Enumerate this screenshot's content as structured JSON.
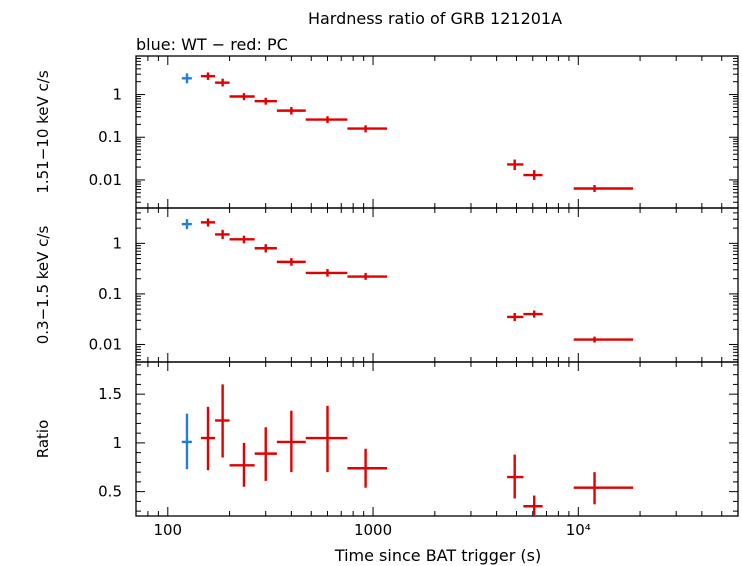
{
  "chart_data": {
    "type": "scatter",
    "title": "Hardness ratio of GRB 121201A",
    "subtitle": "blue: WT − red: PC",
    "xlabel": "Time since BAT trigger (s)",
    "xscale": "log",
    "xlim": [
      70,
      60000
    ],
    "xticks": [
      {
        "value": 100,
        "label": "100"
      },
      {
        "value": 1000,
        "label": "1000"
      },
      {
        "value": 10000,
        "label": "10⁴"
      }
    ],
    "colors": {
      "WT": "#1e7fe0",
      "PC": "#e00000"
    },
    "panels": [
      {
        "id": "hard",
        "ylabel": "1.51−10 keV c/s",
        "yscale": "log",
        "ylim": [
          0.0022,
          8
        ],
        "yticks": [
          {
            "value": 1,
            "label": "1"
          },
          {
            "value": 0.1,
            "label": "0.1"
          },
          {
            "value": 0.01,
            "label": "0.01"
          }
        ],
        "series": [
          {
            "name": "WT",
            "points": [
              {
                "x": 124,
                "xerr": [
                  117,
                  131
                ],
                "y": 2.4
              }
            ]
          },
          {
            "name": "PC",
            "points": [
              {
                "x": 157,
                "xerr": [
                  145,
                  170
                ],
                "y": 2.7,
                "yerr": [
                  2.2,
                  3.3
                ]
              },
              {
                "x": 185,
                "xerr": [
                  170,
                  200
                ],
                "y": 1.9,
                "yerr": [
                  1.55,
                  2.35
                ]
              },
              {
                "x": 235,
                "xerr": [
                  200,
                  265
                ],
                "y": 0.9,
                "yerr": [
                  0.74,
                  1.08
                ]
              },
              {
                "x": 300,
                "xerr": [
                  265,
                  340
                ],
                "y": 0.7,
                "yerr": [
                  0.58,
                  0.84
                ]
              },
              {
                "x": 400,
                "xerr": [
                  340,
                  470
                ],
                "y": 0.42,
                "yerr": [
                  0.34,
                  0.51
                ]
              },
              {
                "x": 600,
                "xerr": [
                  470,
                  750
                ],
                "y": 0.26,
                "yerr": [
                  0.215,
                  0.31
                ]
              },
              {
                "x": 920,
                "xerr": [
                  750,
                  1170
                ],
                "y": 0.16,
                "yerr": [
                  0.13,
                  0.19
                ]
              },
              {
                "x": 4900,
                "xerr": [
                  4500,
                  5400
                ],
                "y": 0.023,
                "yerr": [
                  0.017,
                  0.03
                ]
              },
              {
                "x": 6100,
                "xerr": [
                  5400,
                  6700
                ],
                "y": 0.013,
                "yerr": [
                  0.01,
                  0.017
                ]
              },
              {
                "x": 12000,
                "xerr": [
                  9500,
                  18500
                ],
                "y": 0.0063,
                "yerr": [
                  0.0052,
                  0.0076
                ]
              }
            ]
          }
        ]
      },
      {
        "id": "soft",
        "ylabel": "0.3−1.5 keV c/s",
        "yscale": "log",
        "ylim": [
          0.0045,
          5
        ],
        "yticks": [
          {
            "value": 1,
            "label": "1"
          },
          {
            "value": 0.1,
            "label": "0.1"
          },
          {
            "value": 0.01,
            "label": "0.01"
          }
        ],
        "series": [
          {
            "name": "WT",
            "points": [
              {
                "x": 124,
                "xerr": [
                  117,
                  131
                ],
                "y": 2.4
              }
            ]
          },
          {
            "name": "PC",
            "points": [
              {
                "x": 157,
                "xerr": [
                  145,
                  170
                ],
                "y": 2.6,
                "yerr": [
                  2.15,
                  3.1
                ]
              },
              {
                "x": 185,
                "xerr": [
                  170,
                  200
                ],
                "y": 1.5,
                "yerr": [
                  1.22,
                  1.85
                ]
              },
              {
                "x": 235,
                "xerr": [
                  200,
                  265
                ],
                "y": 1.2,
                "yerr": [
                  1.0,
                  1.42
                ]
              },
              {
                "x": 300,
                "xerr": [
                  265,
                  340
                ],
                "y": 0.8,
                "yerr": [
                  0.66,
                  0.96
                ]
              },
              {
                "x": 400,
                "xerr": [
                  340,
                  470
                ],
                "y": 0.43,
                "yerr": [
                  0.36,
                  0.51
                ]
              },
              {
                "x": 600,
                "xerr": [
                  470,
                  750
                ],
                "y": 0.26,
                "yerr": [
                  0.22,
                  0.31
                ]
              },
              {
                "x": 920,
                "xerr": [
                  750,
                  1170
                ],
                "y": 0.22,
                "yerr": [
                  0.19,
                  0.26
                ]
              },
              {
                "x": 4900,
                "xerr": [
                  4500,
                  5400
                ],
                "y": 0.035,
                "yerr": [
                  0.029,
                  0.042
                ]
              },
              {
                "x": 6100,
                "xerr": [
                  5400,
                  6700
                ],
                "y": 0.04,
                "yerr": [
                  0.034,
                  0.047
                ]
              },
              {
                "x": 12000,
                "xerr": [
                  9500,
                  18500
                ],
                "y": 0.0125,
                "yerr": [
                  0.0109,
                  0.0143
                ]
              }
            ]
          }
        ]
      },
      {
        "id": "ratio",
        "ylabel": "Ratio",
        "yscale": "linear",
        "ylim": [
          0.25,
          1.83
        ],
        "yticks": [
          {
            "value": 0.5,
            "label": "0.5"
          },
          {
            "value": 1,
            "label": "1"
          },
          {
            "value": 1.5,
            "label": "1.5"
          }
        ],
        "series": [
          {
            "name": "WT",
            "points": [
              {
                "x": 124,
                "xerr": [
                  117,
                  131
                ],
                "y": 1.01,
                "yerr": [
                  0.73,
                  1.3
                ]
              }
            ]
          },
          {
            "name": "PC",
            "points": [
              {
                "x": 157,
                "xerr": [
                  145,
                  170
                ],
                "y": 1.05,
                "yerr": [
                  0.72,
                  1.37
                ]
              },
              {
                "x": 185,
                "xerr": [
                  170,
                  200
                ],
                "y": 1.23,
                "yerr": [
                  0.85,
                  1.6
                ]
              },
              {
                "x": 235,
                "xerr": [
                  200,
                  265
                ],
                "y": 0.77,
                "yerr": [
                  0.55,
                  1.0
                ]
              },
              {
                "x": 300,
                "xerr": [
                  265,
                  340
                ],
                "y": 0.89,
                "yerr": [
                  0.61,
                  1.16
                ]
              },
              {
                "x": 400,
                "xerr": [
                  340,
                  470
                ],
                "y": 1.01,
                "yerr": [
                  0.7,
                  1.33
                ]
              },
              {
                "x": 600,
                "xerr": [
                  470,
                  750
                ],
                "y": 1.05,
                "yerr": [
                  0.7,
                  1.38
                ]
              },
              {
                "x": 920,
                "xerr": [
                  750,
                  1170
                ],
                "y": 0.74,
                "yerr": [
                  0.54,
                  0.94
                ]
              },
              {
                "x": 4900,
                "xerr": [
                  4500,
                  5400
                ],
                "y": 0.65,
                "yerr": [
                  0.43,
                  0.88
                ]
              },
              {
                "x": 6100,
                "xerr": [
                  5400,
                  6700
                ],
                "y": 0.35,
                "yerr": [
                  0.25,
                  0.46
                ]
              },
              {
                "x": 12000,
                "xerr": [
                  9500,
                  18500
                ],
                "y": 0.54,
                "yerr": [
                  0.37,
                  0.7
                ]
              }
            ]
          }
        ]
      }
    ]
  }
}
